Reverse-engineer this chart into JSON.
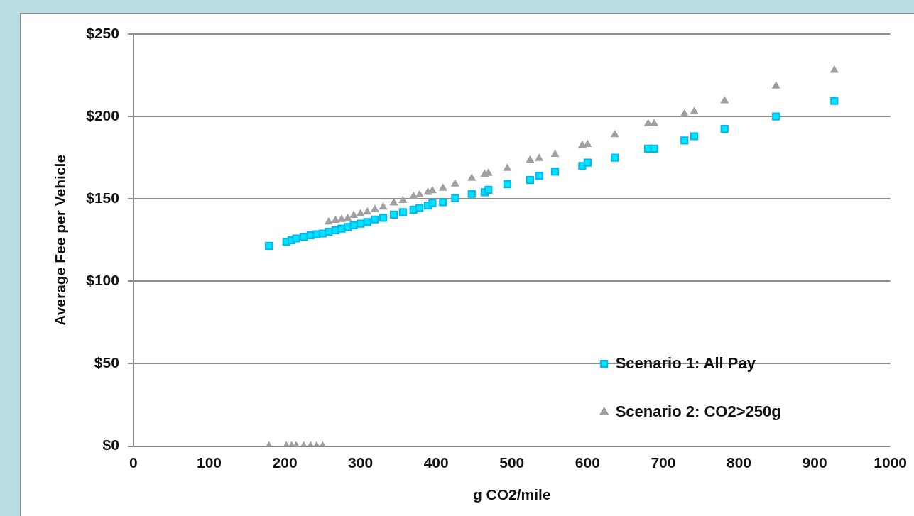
{
  "chart_data": {
    "type": "scatter",
    "xlabel": "g CO2/mile",
    "ylabel": "Average Fee per Vehicle",
    "xlim": [
      0,
      1000
    ],
    "xticks": [
      0,
      100,
      200,
      300,
      400,
      500,
      600,
      700,
      800,
      900,
      1000
    ],
    "ylim": [
      0,
      250
    ],
    "yticks": [
      {
        "value": 0,
        "label": "$0"
      },
      {
        "value": 50,
        "label": "$50"
      },
      {
        "value": 100,
        "label": "$100"
      },
      {
        "value": 150,
        "label": "$150"
      },
      {
        "value": 200,
        "label": "$200"
      },
      {
        "value": 250,
        "label": "$250"
      }
    ],
    "grid": "y",
    "legend": "bottom right",
    "series": [
      {
        "name": "Scenario 1: All Pay",
        "color": "#00e5ff",
        "marker": "square",
        "x": [
          179,
          202,
          209,
          215,
          225,
          234,
          242,
          250,
          258,
          267,
          275,
          283,
          291,
          300,
          309,
          319,
          330,
          344,
          356,
          370,
          378,
          389,
          395,
          409,
          425,
          447,
          464,
          469,
          494,
          524,
          536,
          557,
          593,
          600,
          636,
          680,
          688,
          728,
          741,
          781,
          849,
          926
        ],
        "values": [
          121.5,
          124,
          125,
          126,
          127,
          128,
          128.5,
          129,
          130,
          131,
          132,
          133,
          134,
          135,
          136,
          137.5,
          138.5,
          140.5,
          142,
          143.5,
          144.5,
          146,
          147.5,
          148,
          150.5,
          153,
          154,
          155.5,
          159,
          161.5,
          164,
          166.5,
          170,
          172,
          175,
          180.5,
          180.5,
          185.5,
          188,
          192.5,
          200,
          209.5
        ]
      },
      {
        "name": "Scenario 2: CO2>250g",
        "color": "#a0a0a0",
        "marker": "triangle",
        "x": [
          179,
          202,
          209,
          215,
          225,
          234,
          242,
          250,
          258,
          267,
          275,
          283,
          291,
          300,
          309,
          319,
          330,
          344,
          356,
          370,
          378,
          389,
          395,
          409,
          425,
          447,
          464,
          469,
          494,
          524,
          536,
          557,
          593,
          600,
          636,
          680,
          688,
          728,
          741,
          781,
          849,
          926
        ],
        "values": [
          0,
          0,
          0,
          0,
          0,
          0,
          0,
          0,
          136,
          137,
          137.5,
          138,
          140,
          141,
          142,
          143.5,
          145,
          147.5,
          149,
          151.5,
          152.5,
          154,
          155,
          156.5,
          159,
          162.5,
          165,
          165.5,
          168.5,
          173.5,
          174.5,
          177,
          182.5,
          183,
          189,
          195.5,
          195.5,
          201.5,
          203,
          209.5,
          218.5,
          228
        ]
      }
    ]
  }
}
